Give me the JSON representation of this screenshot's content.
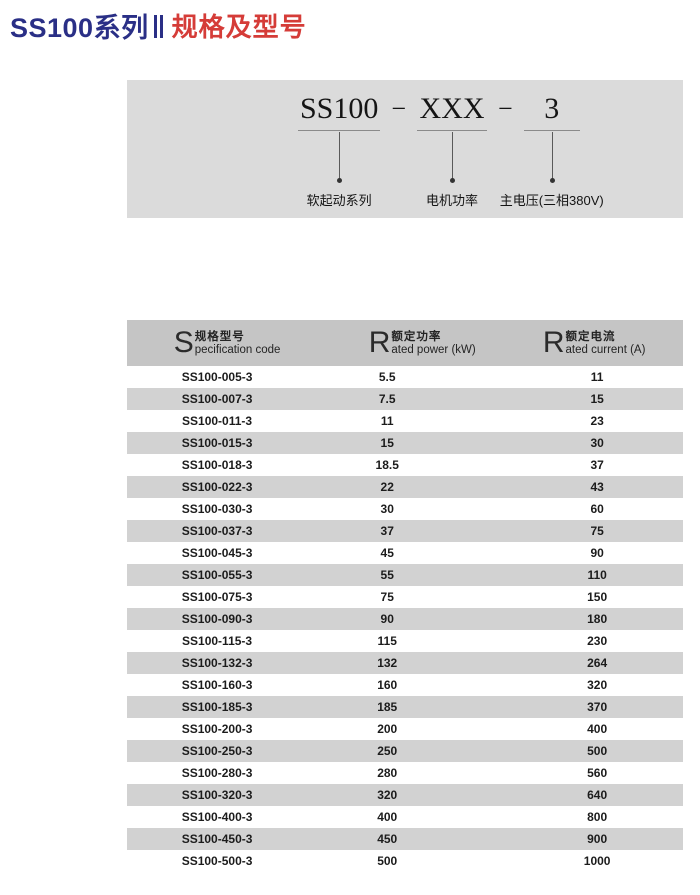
{
  "header": {
    "series": "SS100系列",
    "section": "规格及型号"
  },
  "model_diagram": {
    "separator": "−",
    "segments": [
      {
        "text": "SS100",
        "label": "软起动系列"
      },
      {
        "text": "XXX",
        "label": "电机功率"
      },
      {
        "text": "3",
        "label": "主电压(三相380V)"
      }
    ]
  },
  "table": {
    "columns": [
      {
        "initial": "S",
        "cn": "规格型号",
        "en": "pecification code"
      },
      {
        "initial": "R",
        "cn": "额定功率",
        "en": "ated power (kW)"
      },
      {
        "initial": "R",
        "cn": "额定电流",
        "en": "ated current (A)"
      }
    ],
    "rows": [
      [
        "SS100-005-3",
        "5.5",
        "11"
      ],
      [
        "SS100-007-3",
        "7.5",
        "15"
      ],
      [
        "SS100-011-3",
        "11",
        "23"
      ],
      [
        "SS100-015-3",
        "15",
        "30"
      ],
      [
        "SS100-018-3",
        "18.5",
        "37"
      ],
      [
        "SS100-022-3",
        "22",
        "43"
      ],
      [
        "SS100-030-3",
        "30",
        "60"
      ],
      [
        "SS100-037-3",
        "37",
        "75"
      ],
      [
        "SS100-045-3",
        "45",
        "90"
      ],
      [
        "SS100-055-3",
        "55",
        "110"
      ],
      [
        "SS100-075-3",
        "75",
        "150"
      ],
      [
        "SS100-090-3",
        "90",
        "180"
      ],
      [
        "SS100-115-3",
        "115",
        "230"
      ],
      [
        "SS100-132-3",
        "132",
        "264"
      ],
      [
        "SS100-160-3",
        "160",
        "320"
      ],
      [
        "SS100-185-3",
        "185",
        "370"
      ],
      [
        "SS100-200-3",
        "200",
        "400"
      ],
      [
        "SS100-250-3",
        "250",
        "500"
      ],
      [
        "SS100-280-3",
        "280",
        "560"
      ],
      [
        "SS100-320-3",
        "320",
        "640"
      ],
      [
        "SS100-400-3",
        "400",
        "800"
      ],
      [
        "SS100-450-3",
        "450",
        "900"
      ],
      [
        "SS100-500-3",
        "500",
        "1000"
      ]
    ]
  },
  "colors": {
    "navy": "#2a2f86",
    "red": "#d53c38",
    "panel_gray": "#dbdbdb",
    "header_gray": "#c5c5c5",
    "stripe_gray": "#d2d2d2"
  }
}
